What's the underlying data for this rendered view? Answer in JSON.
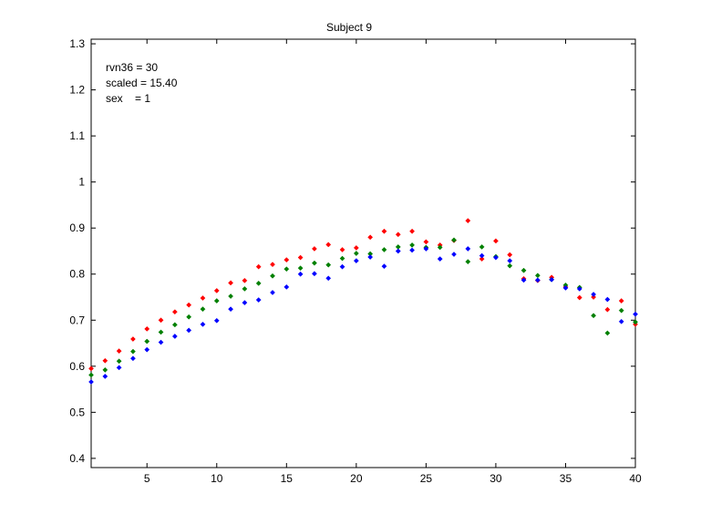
{
  "chart_data": {
    "type": "scatter",
    "title": "Subject 9",
    "annotations": [
      "rvn36 = 30",
      "scaled = 15.40",
      "sex    = 1"
    ],
    "xlim": [
      1,
      40
    ],
    "ylim": [
      0.38,
      1.31
    ],
    "xticks": [
      5,
      10,
      15,
      20,
      25,
      30,
      35,
      40
    ],
    "yticks": [
      0.4,
      0.5,
      0.6,
      0.7,
      0.8,
      0.9,
      1,
      1.1,
      1.2,
      1.3
    ],
    "ytick_labels": [
      "0.4",
      "0.5",
      "0.6",
      "0.7",
      "0.8",
      "0.9",
      "1",
      "1.1",
      "1.2",
      "1.3"
    ],
    "x": [
      1,
      2,
      3,
      4,
      5,
      6,
      7,
      8,
      9,
      10,
      11,
      12,
      13,
      14,
      15,
      16,
      17,
      18,
      19,
      20,
      21,
      22,
      23,
      24,
      25,
      26,
      27,
      28,
      29,
      30,
      31,
      32,
      33,
      34,
      35,
      36,
      37,
      38,
      39,
      40
    ],
    "series": [
      {
        "color": "#ff0000",
        "values": [
          0.595,
          0.612,
          0.633,
          0.659,
          0.681,
          0.7,
          0.718,
          0.733,
          0.748,
          0.764,
          0.781,
          0.786,
          0.816,
          0.821,
          0.831,
          0.836,
          0.855,
          0.864,
          0.853,
          0.857,
          0.88,
          0.893,
          0.886,
          0.893,
          0.87,
          0.863,
          0.873,
          0.916,
          0.833,
          0.872,
          0.842,
          0.79,
          0.786,
          0.793,
          0.772,
          0.749,
          0.75,
          0.723,
          0.742,
          0.691
        ]
      },
      {
        "color": "#008000",
        "values": [
          0.581,
          0.592,
          0.611,
          0.632,
          0.654,
          0.674,
          0.69,
          0.707,
          0.724,
          0.742,
          0.752,
          0.768,
          0.78,
          0.796,
          0.811,
          0.813,
          0.824,
          0.82,
          0.834,
          0.845,
          0.844,
          0.853,
          0.859,
          0.863,
          0.858,
          0.858,
          0.874,
          0.827,
          0.859,
          0.838,
          0.818,
          0.808,
          0.797,
          0.788,
          0.776,
          0.771,
          0.71,
          0.672,
          0.721,
          0.696
        ]
      },
      {
        "color": "#0000ff",
        "values": [
          0.566,
          0.578,
          0.597,
          0.617,
          0.636,
          0.652,
          0.665,
          0.678,
          0.691,
          0.699,
          0.724,
          0.738,
          0.744,
          0.76,
          0.772,
          0.8,
          0.801,
          0.791,
          0.816,
          0.829,
          0.837,
          0.817,
          0.85,
          0.852,
          0.855,
          0.833,
          0.843,
          0.855,
          0.84,
          0.836,
          0.829,
          0.787,
          0.787,
          0.788,
          0.77,
          0.768,
          0.756,
          0.745,
          0.697,
          0.713
        ]
      }
    ]
  }
}
